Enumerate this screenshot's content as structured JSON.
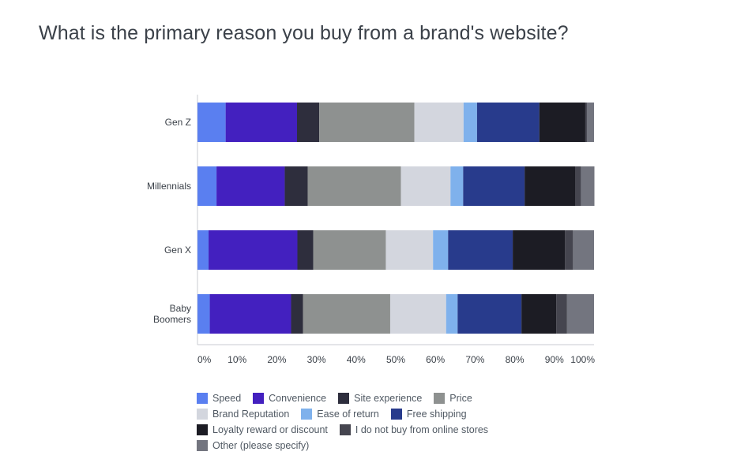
{
  "title": "What is the primary reason you buy from a brand's website?",
  "chart_data": {
    "type": "bar",
    "orientation": "horizontal",
    "stacked": true,
    "normalized": true,
    "categories": [
      "Gen Z",
      "Millennials",
      "Gen X",
      "Baby Boomers"
    ],
    "category_display": [
      [
        "Gen Z"
      ],
      [
        "Millennials"
      ],
      [
        "Gen X"
      ],
      [
        "Baby",
        "Boomers"
      ]
    ],
    "xlim": [
      0,
      100
    ],
    "xticks": [
      "0%",
      "10%",
      "20%",
      "30%",
      "40%",
      "50%",
      "60%",
      "70%",
      "80%",
      "90%",
      "100%"
    ],
    "grid": false,
    "legend_position": "bottom",
    "series": [
      {
        "name": "Speed",
        "color": "#5a7ff0",
        "values": [
          7.1,
          4.8,
          2.8,
          3.1
        ]
      },
      {
        "name": "Convenience",
        "color": "#4320bf",
        "values": [
          18.0,
          17.2,
          22.4,
          20.5
        ]
      },
      {
        "name": "Site experience",
        "color": "#2e2e3d",
        "values": [
          5.6,
          5.8,
          4.0,
          3.0
        ]
      },
      {
        "name": "Price",
        "color": "#8e9190",
        "values": [
          24.0,
          23.5,
          18.3,
          22.0
        ]
      },
      {
        "name": "Brand Reputation",
        "color": "#d3d6de",
        "values": [
          12.4,
          12.5,
          11.9,
          14.1
        ]
      },
      {
        "name": "Ease of return",
        "color": "#7fb1ec",
        "values": [
          3.4,
          3.2,
          3.8,
          2.9
        ]
      },
      {
        "name": "Free shipping",
        "color": "#283b8c",
        "values": [
          15.7,
          15.5,
          16.3,
          16.1
        ]
      },
      {
        "name": "Loyalty reward or discount",
        "color": "#1c1c24",
        "values": [
          11.6,
          12.8,
          13.2,
          8.8
        ]
      },
      {
        "name": "I do not buy from online stores",
        "color": "#45454f",
        "values": [
          0.4,
          1.4,
          2.0,
          2.7
        ]
      },
      {
        "name": "Other (please specify)",
        "color": "#73757f",
        "values": [
          1.8,
          3.4,
          5.3,
          6.8
        ]
      }
    ],
    "legend_rows": [
      [
        0,
        1,
        2,
        3
      ],
      [
        4,
        5,
        6
      ],
      [
        7,
        8
      ],
      [
        9
      ]
    ]
  }
}
